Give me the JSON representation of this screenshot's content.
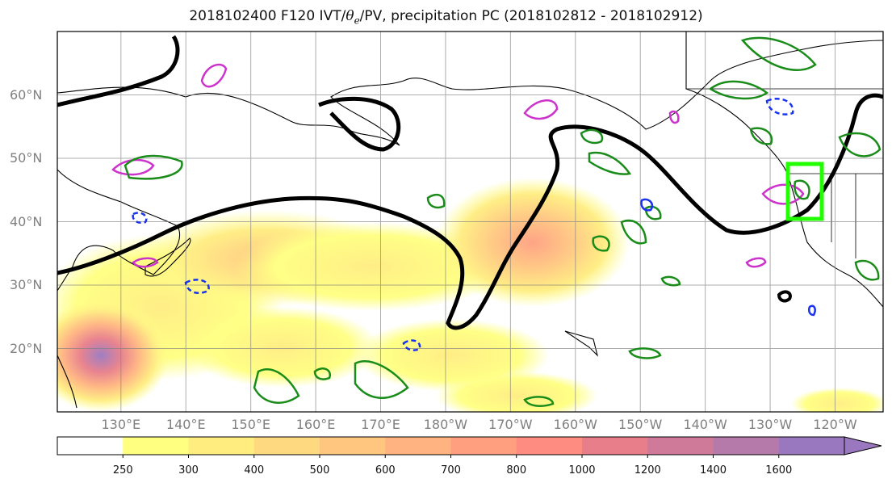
{
  "title": {
    "prefix": "2018102400 F120 IVT/",
    "theta": "θ",
    "theta_sub": "e",
    "suffix": "/PV, precipitation PC (2018102812 - 2018102912)"
  },
  "map": {
    "lat_labels": [
      "60°N",
      "50°N",
      "40°N",
      "30°N",
      "20°N"
    ],
    "lat_values": [
      60,
      50,
      40,
      30,
      20
    ],
    "lon_labels": [
      "130°E",
      "140°E",
      "150°E",
      "160°E",
      "170°E",
      "180°W",
      "170°W",
      "160°W",
      "150°W",
      "140°W",
      "130°W",
      "120°W"
    ],
    "lon_values": [
      130,
      140,
      150,
      160,
      170,
      180,
      190,
      200,
      210,
      220,
      230,
      240
    ],
    "lon_range": [
      120.2,
      247.4
    ],
    "lat_range": [
      10,
      70
    ],
    "grid": true,
    "colors": {
      "pv_contour": "#000000",
      "theta_e_anomaly": "#cc33cc",
      "precip_pc_pos": "#1a8c1a",
      "precip_pc_neg": "#1a33ee",
      "target_box": "#22ff00"
    }
  },
  "colorbar": {
    "ticks": [
      "250",
      "300",
      "400",
      "500",
      "600",
      "700",
      "800",
      "1000",
      "1200",
      "1400",
      "1600"
    ],
    "colors": [
      "#ffffff",
      "#ffff80",
      "#ffed80",
      "#ffd980",
      "#ffc680",
      "#ffb380",
      "#ff9f80",
      "#ff8c80",
      "#e87e8a",
      "#d07a9a",
      "#b57aaa",
      "#9a78c0"
    ]
  },
  "legend_labels": {
    "ivt": "IVT",
    "pv": "PV",
    "theta": "θe",
    "precip": "precipitation PC"
  }
}
